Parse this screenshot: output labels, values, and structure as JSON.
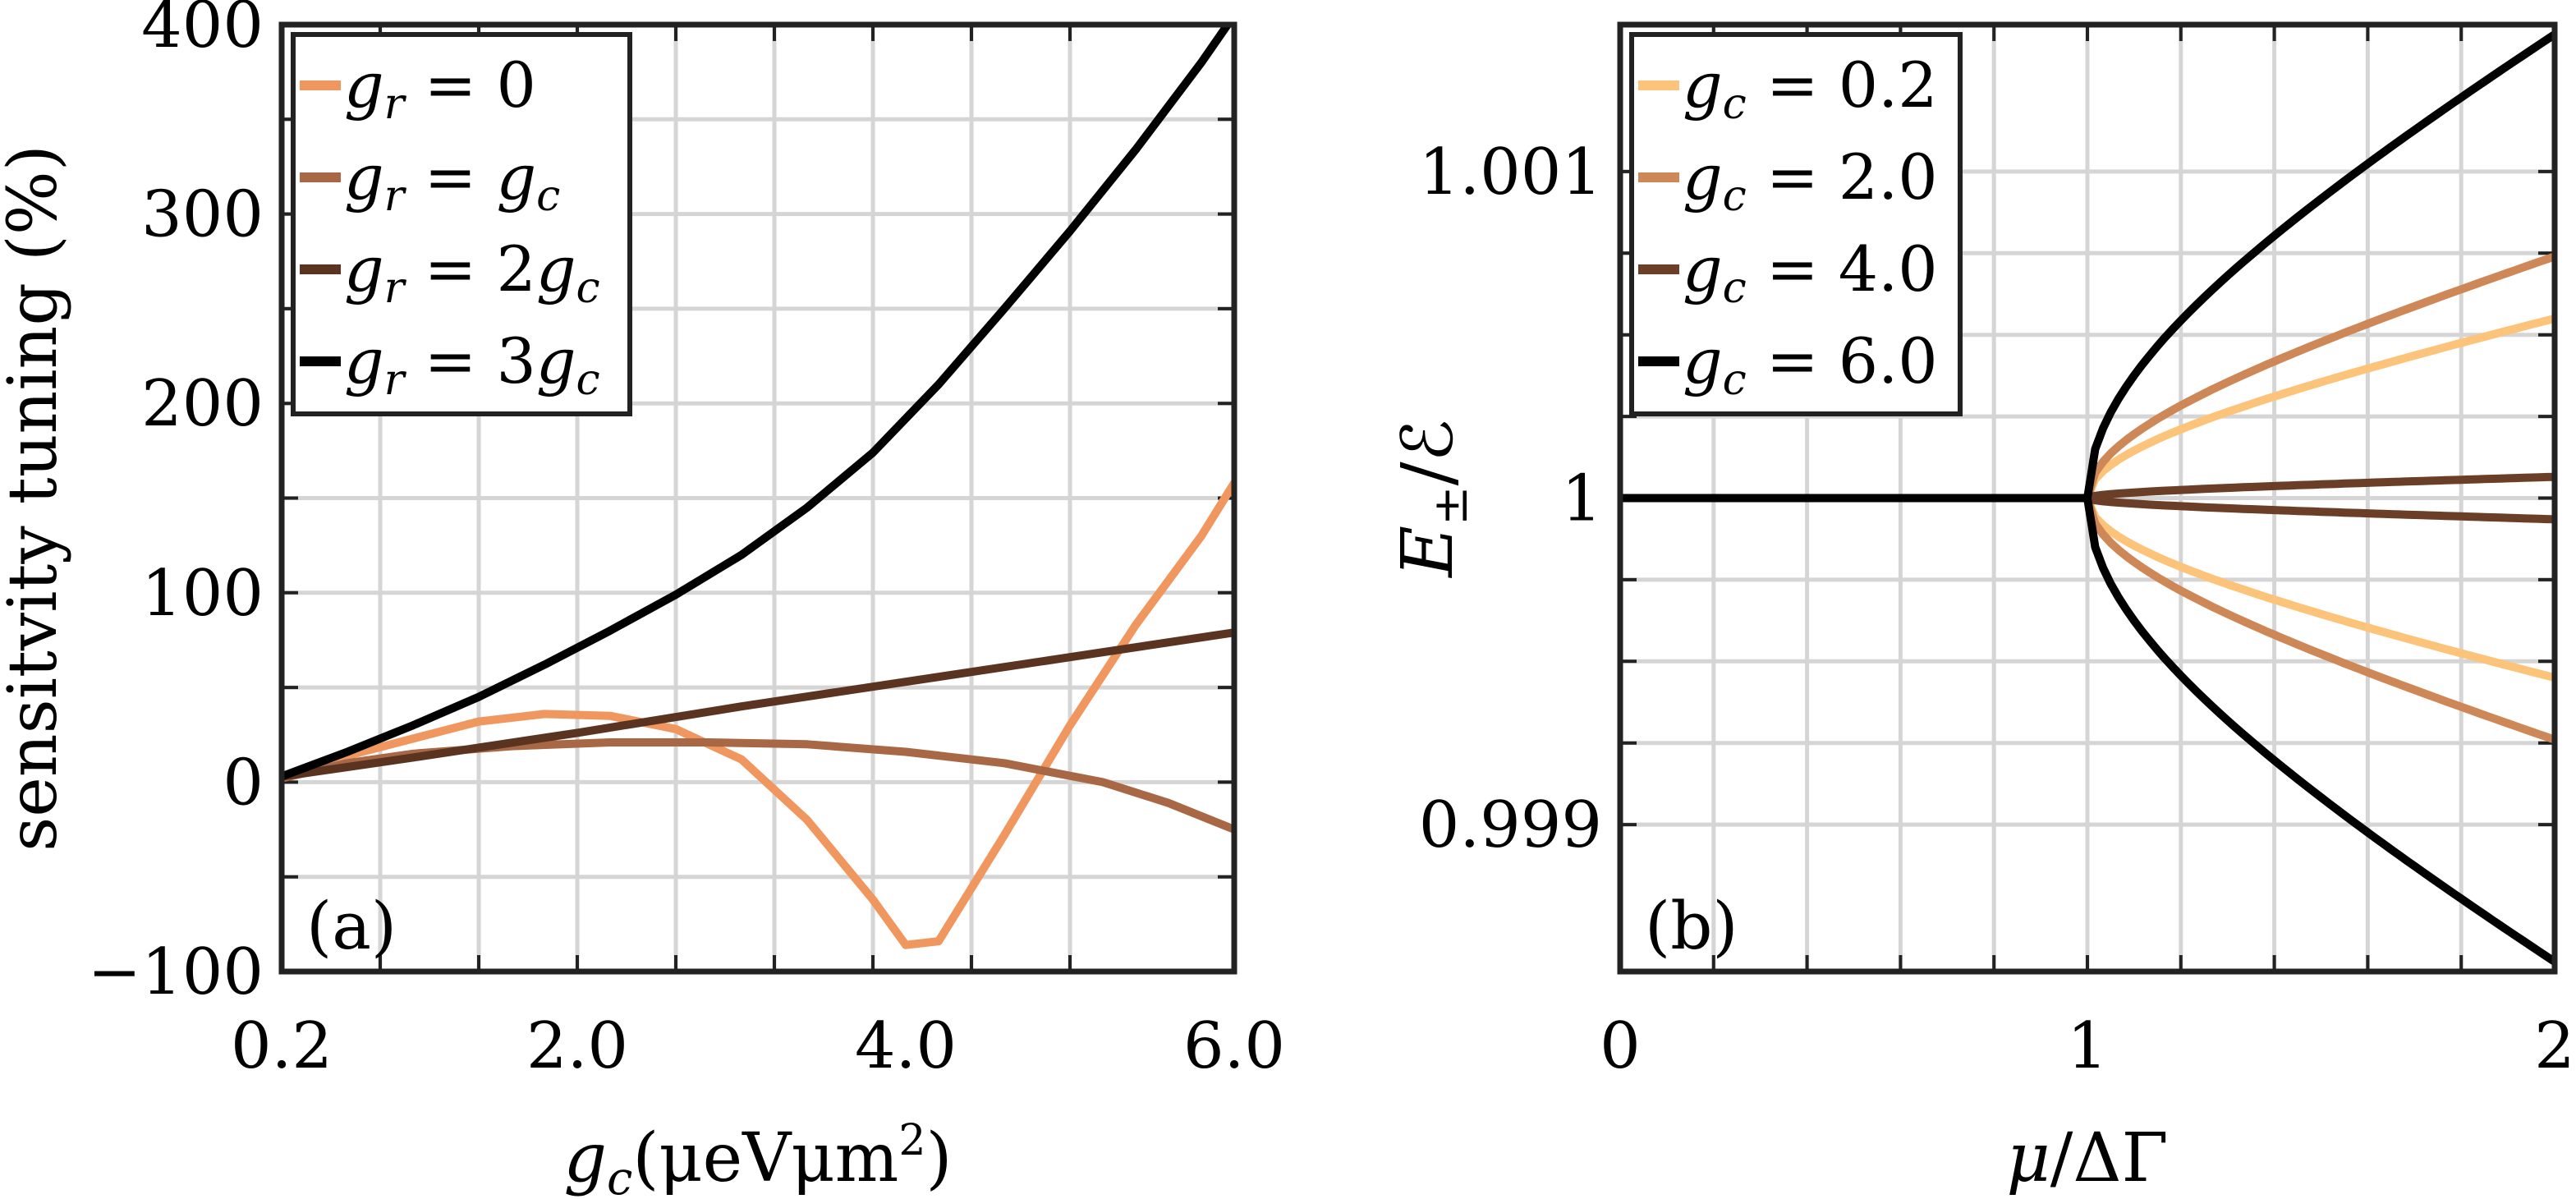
{
  "chart_data": [
    {
      "type": "line",
      "panel_label": "(a)",
      "xlabel_symbol": "g",
      "xlabel_sub": "c",
      "xlabel_unit": "(μeVμm",
      "xlabel_unit_sup": "2",
      "xlabel_unit_close": ")",
      "ylabel": "sensitvity tuning (%)",
      "xlim": [
        0.2,
        6.0
      ],
      "ylim": [
        -100,
        400
      ],
      "xticks": [
        0.2,
        2.0,
        4.0,
        6.0
      ],
      "xtick_labels": [
        "0.2",
        "2.0",
        "4.0",
        "6.0"
      ],
      "yticks": [
        -100,
        0,
        100,
        200,
        300,
        400
      ],
      "ytick_labels": [
        "−100",
        "0",
        "100",
        "200",
        "300",
        "400"
      ],
      "grid": true,
      "legend_position": "top-left",
      "series": [
        {
          "name": "g_r = 0",
          "legend_lhs": "g",
          "legend_lhs_sub": "r",
          "legend_eq": " = ",
          "legend_rhs": "0",
          "legend_rhs_sub": "",
          "color": "#F0965F",
          "x": [
            0.2,
            0.6,
            1.0,
            1.4,
            1.8,
            2.2,
            2.6,
            3.0,
            3.4,
            3.8,
            4.0,
            4.2,
            4.6,
            5.0,
            5.4,
            5.8,
            6.0
          ],
          "y": [
            3,
            14,
            23,
            32,
            36,
            35,
            28,
            12,
            -20,
            -62,
            -86,
            -84,
            -28,
            30,
            83,
            130,
            158
          ]
        },
        {
          "name": "g_r = g_c",
          "legend_lhs": "g",
          "legend_lhs_sub": "r",
          "legend_eq": " = ",
          "legend_rhs": "g",
          "legend_rhs_sub": "c",
          "color": "#A86845",
          "x": [
            0.2,
            0.6,
            1.0,
            1.6,
            2.2,
            2.8,
            3.4,
            4.0,
            4.6,
            5.2,
            5.6,
            6.0
          ],
          "y": [
            2,
            10,
            15,
            19,
            21,
            21,
            20,
            16,
            10,
            0,
            -11,
            -25
          ]
        },
        {
          "name": "g_r = 2g_c",
          "legend_lhs": "g",
          "legend_lhs_sub": "r",
          "legend_eq": " = ",
          "legend_rhs": "2g",
          "legend_rhs_sub": "c",
          "color": "#5A3421",
          "x": [
            0.2,
            0.6,
            1.0,
            2.0,
            3.0,
            4.0,
            5.0,
            6.0
          ],
          "y": [
            3,
            8,
            13,
            26,
            40,
            53,
            66,
            79
          ]
        },
        {
          "name": "g_r = 3g_c",
          "legend_lhs": "g",
          "legend_lhs_sub": "r",
          "legend_eq": " = ",
          "legend_rhs": "3g",
          "legend_rhs_sub": "c",
          "color": "#000000",
          "x": [
            0.2,
            0.6,
            1.0,
            1.4,
            1.8,
            2.2,
            2.6,
            3.0,
            3.4,
            3.8,
            4.2,
            4.6,
            5.0,
            5.4,
            5.8,
            6.0
          ],
          "y": [
            3,
            16,
            30,
            45,
            62,
            80,
            99,
            120,
            145,
            174,
            210,
            250,
            291,
            334,
            380,
            405
          ]
        }
      ]
    },
    {
      "type": "line",
      "panel_label": "(b)",
      "xlabel_symbol": "μ",
      "xlabel_rest": "/ΔΓ",
      "ylabel_symbol": "E",
      "ylabel_sub": "±",
      "ylabel_rest": "/ℰ",
      "xlim": [
        0,
        2
      ],
      "ylim": [
        0.99855,
        1.00145
      ],
      "xticks": [
        0,
        1,
        2
      ],
      "xtick_labels": [
        "0",
        "1",
        "2"
      ],
      "yticks": [
        0.999,
        1,
        1.001
      ],
      "ytick_labels": [
        "0.999",
        "1",
        "1.001"
      ],
      "grid": true,
      "legend_position": "top-left",
      "series": [
        {
          "name": "g_c = 0.2",
          "legend_lhs": "g",
          "legend_lhs_sub": "c",
          "legend_eq": " = ",
          "legend_rhs": "0.2",
          "legend_rhs_sub": "",
          "color": "#FCC47A",
          "amplitude": 0.00055
        },
        {
          "name": "g_c = 2.0",
          "legend_lhs": "g",
          "legend_lhs_sub": "c",
          "legend_eq": " = ",
          "legend_rhs": "2.0",
          "legend_rhs_sub": "",
          "color": "#CE8858",
          "amplitude": 0.00074
        },
        {
          "name": "g_c = 4.0",
          "legend_lhs": "g",
          "legend_lhs_sub": "c",
          "legend_eq": " = ",
          "legend_rhs": "4.0",
          "legend_rhs_sub": "",
          "color": "#6B3F27",
          "amplitude": 6.5e-05
        },
        {
          "name": "g_c = 6.0",
          "legend_lhs": "g",
          "legend_lhs_sub": "c",
          "legend_eq": " = ",
          "legend_rhs": "6.0",
          "legend_rhs_sub": "",
          "color": "#000000",
          "amplitude": 0.00142
        }
      ]
    }
  ]
}
